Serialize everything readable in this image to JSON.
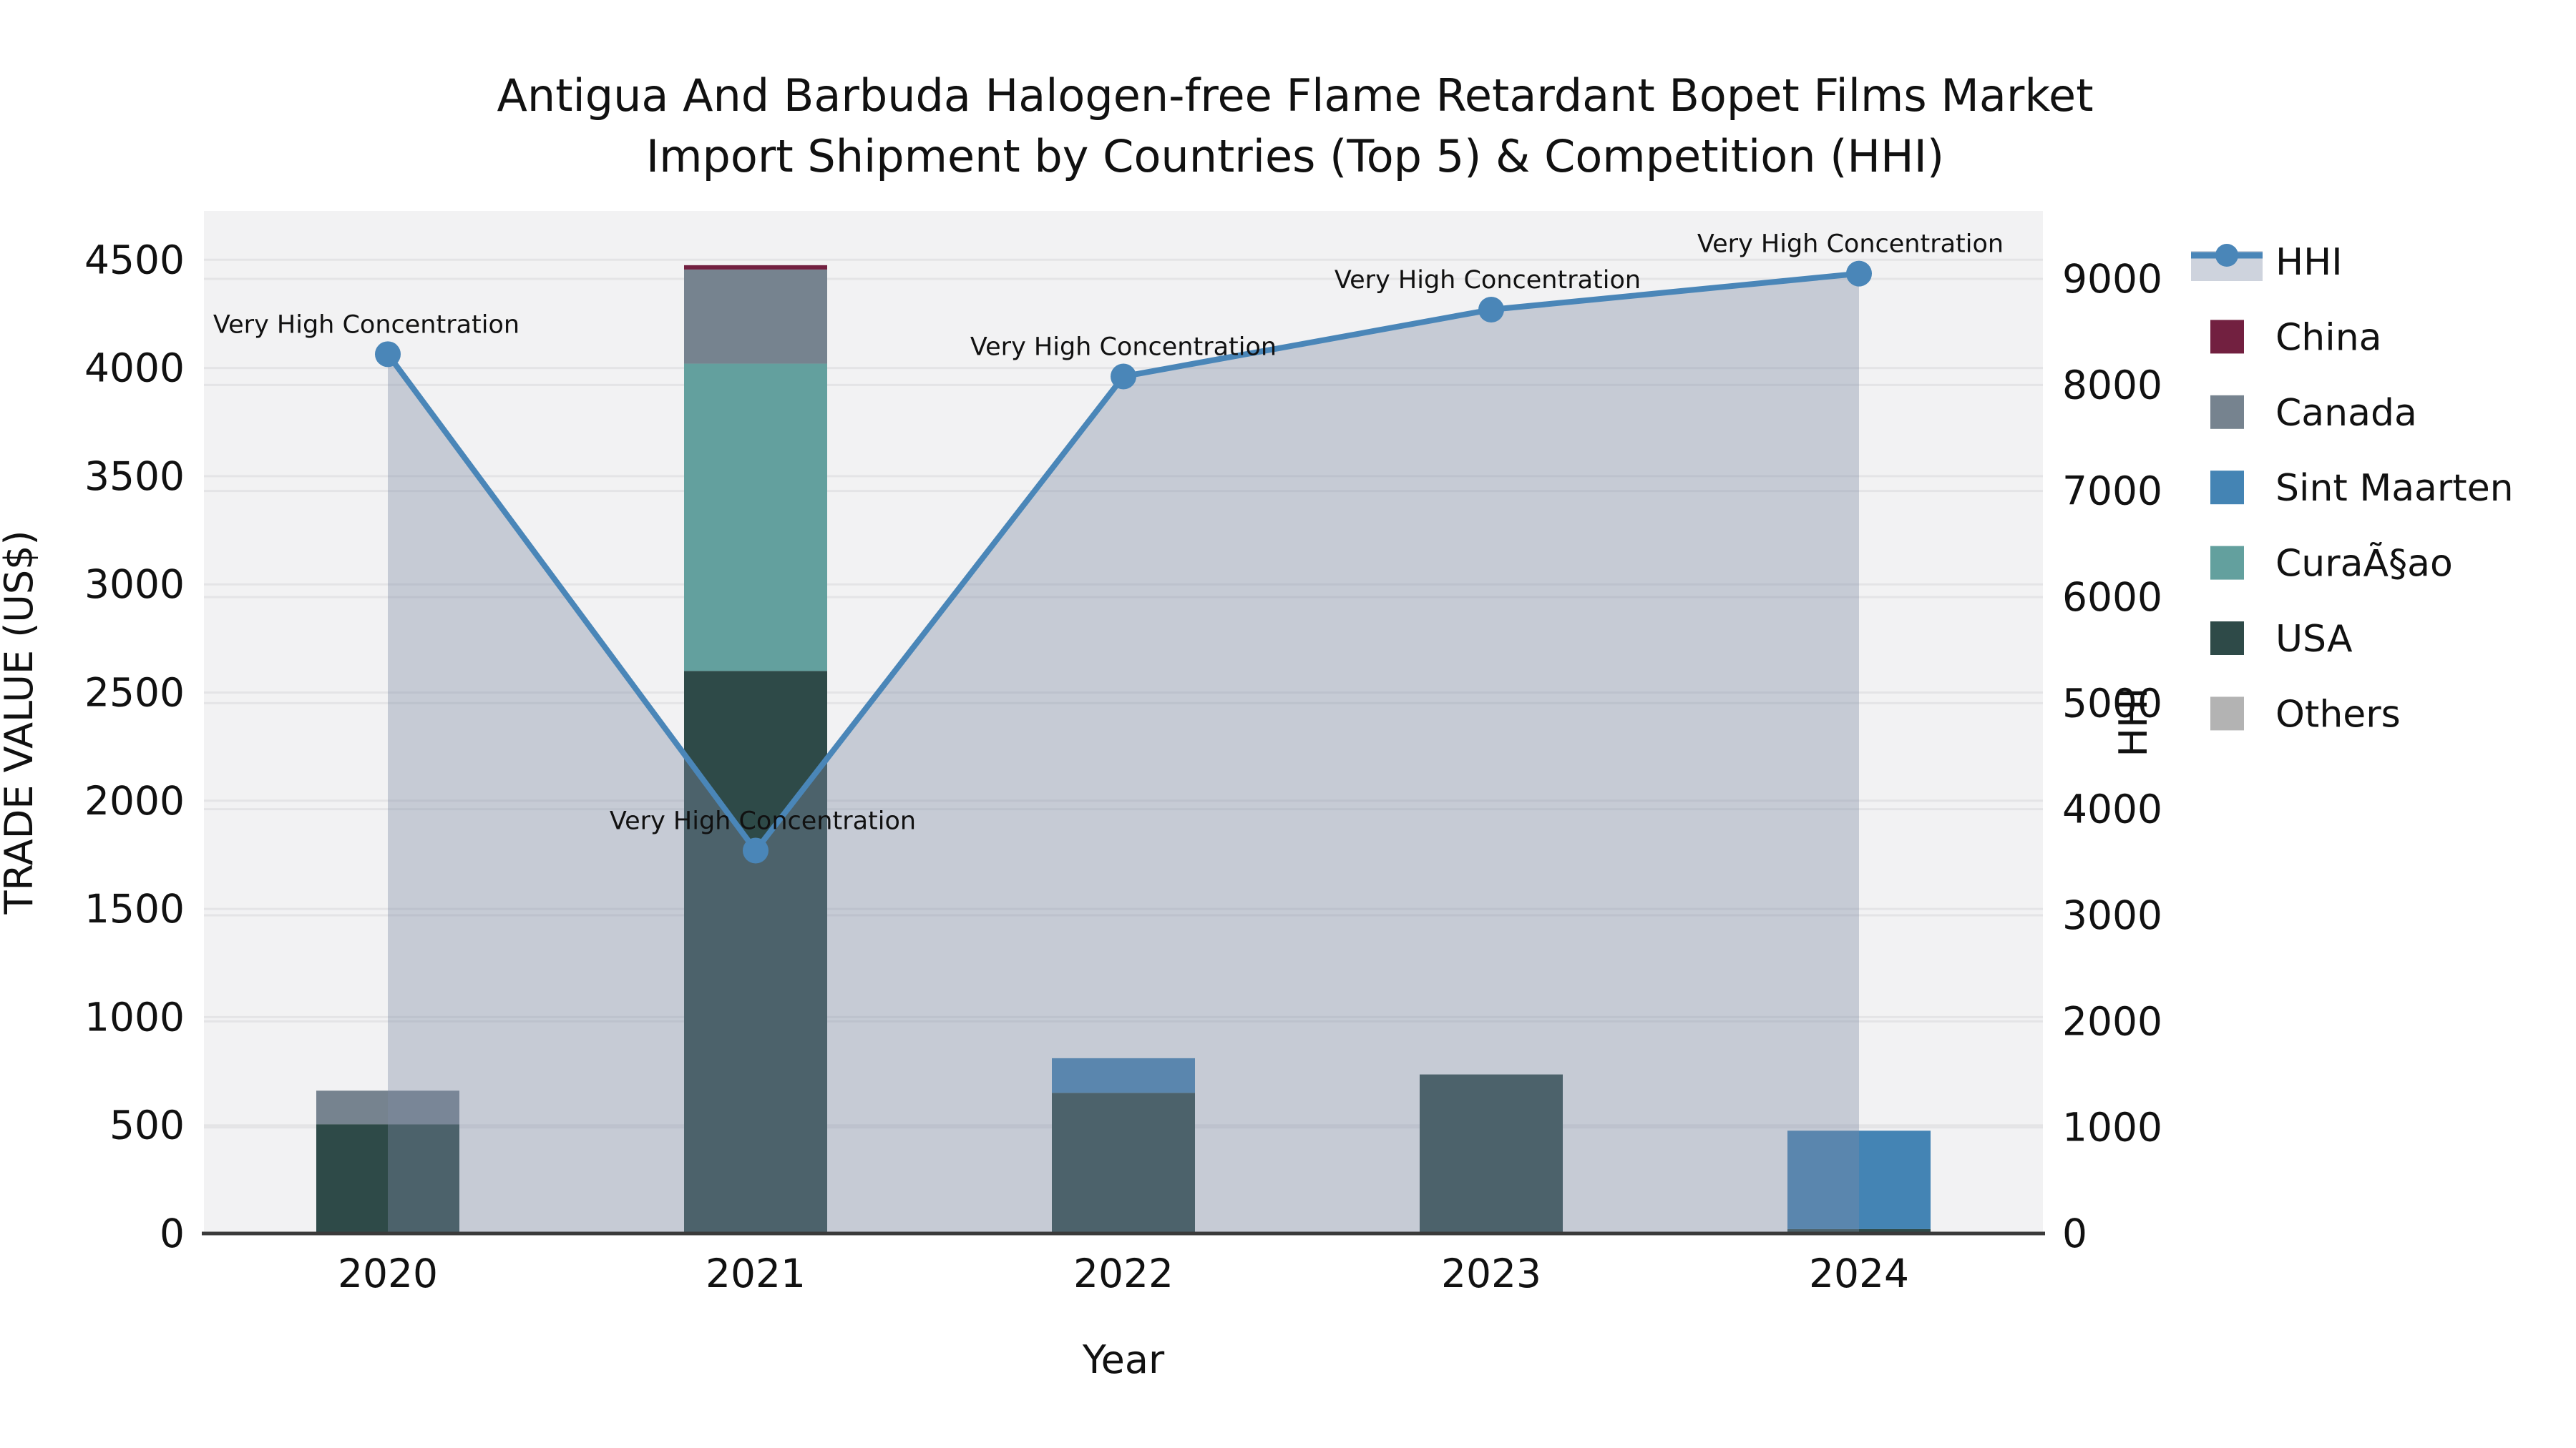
{
  "title": {
    "line1": "Antigua And Barbuda Halogen-free Flame Retardant Bopet Films Market",
    "line2": "Import Shipment by Countries (Top 5) & Competition (HHI)"
  },
  "chart_data": {
    "type": "combo-stacked-bar-line",
    "x": [
      "2020",
      "2021",
      "2022",
      "2023",
      "2024"
    ],
    "xlabel": "Year",
    "left_axis": {
      "label": "TRADE VALUE (US$)",
      "ticks": [
        0,
        500,
        1000,
        1500,
        2000,
        2500,
        3000,
        3500,
        4000,
        4500
      ],
      "range": [
        0,
        4725
      ]
    },
    "right_axis": {
      "label": "HHI",
      "ticks": [
        0,
        1000,
        2000,
        3000,
        4000,
        5000,
        6000,
        7000,
        8000,
        9000
      ],
      "range": [
        0,
        9640
      ]
    },
    "bar_series_bottom_to_top": [
      {
        "name": "Others",
        "color": "#B3B3B3",
        "values": [
          0,
          0,
          0,
          0,
          0
        ]
      },
      {
        "name": "USA",
        "color": "#2E4A48",
        "values": [
          505,
          2600,
          650,
          735,
          20
        ]
      },
      {
        "name": "CuraÃ§ao",
        "color": "#63A09E",
        "values": [
          0,
          1420,
          0,
          0,
          0
        ]
      },
      {
        "name": "Sint Maarten",
        "color": "#4484B4",
        "values": [
          0,
          0,
          160,
          0,
          455
        ]
      },
      {
        "name": "Canada",
        "color": "#76838F",
        "values": [
          155,
          435,
          0,
          0,
          0
        ]
      },
      {
        "name": "China",
        "color": "#722040",
        "values": [
          0,
          20,
          0,
          0,
          0
        ]
      }
    ],
    "line_series": {
      "name": "HHI",
      "axis": "right",
      "color": "#4A86B8",
      "fill": "rgba(125,140,165,0.38)",
      "values": [
        8290,
        3610,
        8080,
        8710,
        9050
      ]
    },
    "annotations": [
      {
        "x": "2020",
        "text": "Very High Concentration"
      },
      {
        "x": "2021",
        "text": "Very High Concentration"
      },
      {
        "x": "2022",
        "text": "Very High Concentration"
      },
      {
        "x": "2023",
        "text": "Very High Concentration"
      },
      {
        "x": "2024",
        "text": "Very High Concentration"
      }
    ],
    "legend": {
      "position": "right",
      "items": [
        {
          "name": "HHI",
          "type": "line",
          "color": "#4A86B8"
        },
        {
          "name": "China",
          "type": "patch",
          "color": "#722040"
        },
        {
          "name": "Canada",
          "type": "patch",
          "color": "#76838F"
        },
        {
          "name": "Sint Maarten",
          "type": "patch",
          "color": "#4484B4"
        },
        {
          "name": "CuraÃ§ao",
          "type": "patch",
          "color": "#63A09E"
        },
        {
          "name": "USA",
          "type": "patch",
          "color": "#2E4A48"
        },
        {
          "name": "Others",
          "type": "patch",
          "color": "#B3B3B3"
        }
      ]
    },
    "grid": true,
    "colors": {
      "plot_bg": "#F2F2F3",
      "grid": "#E4E4E6",
      "axis_line": "#3A3A3A",
      "text": "#111111"
    }
  }
}
